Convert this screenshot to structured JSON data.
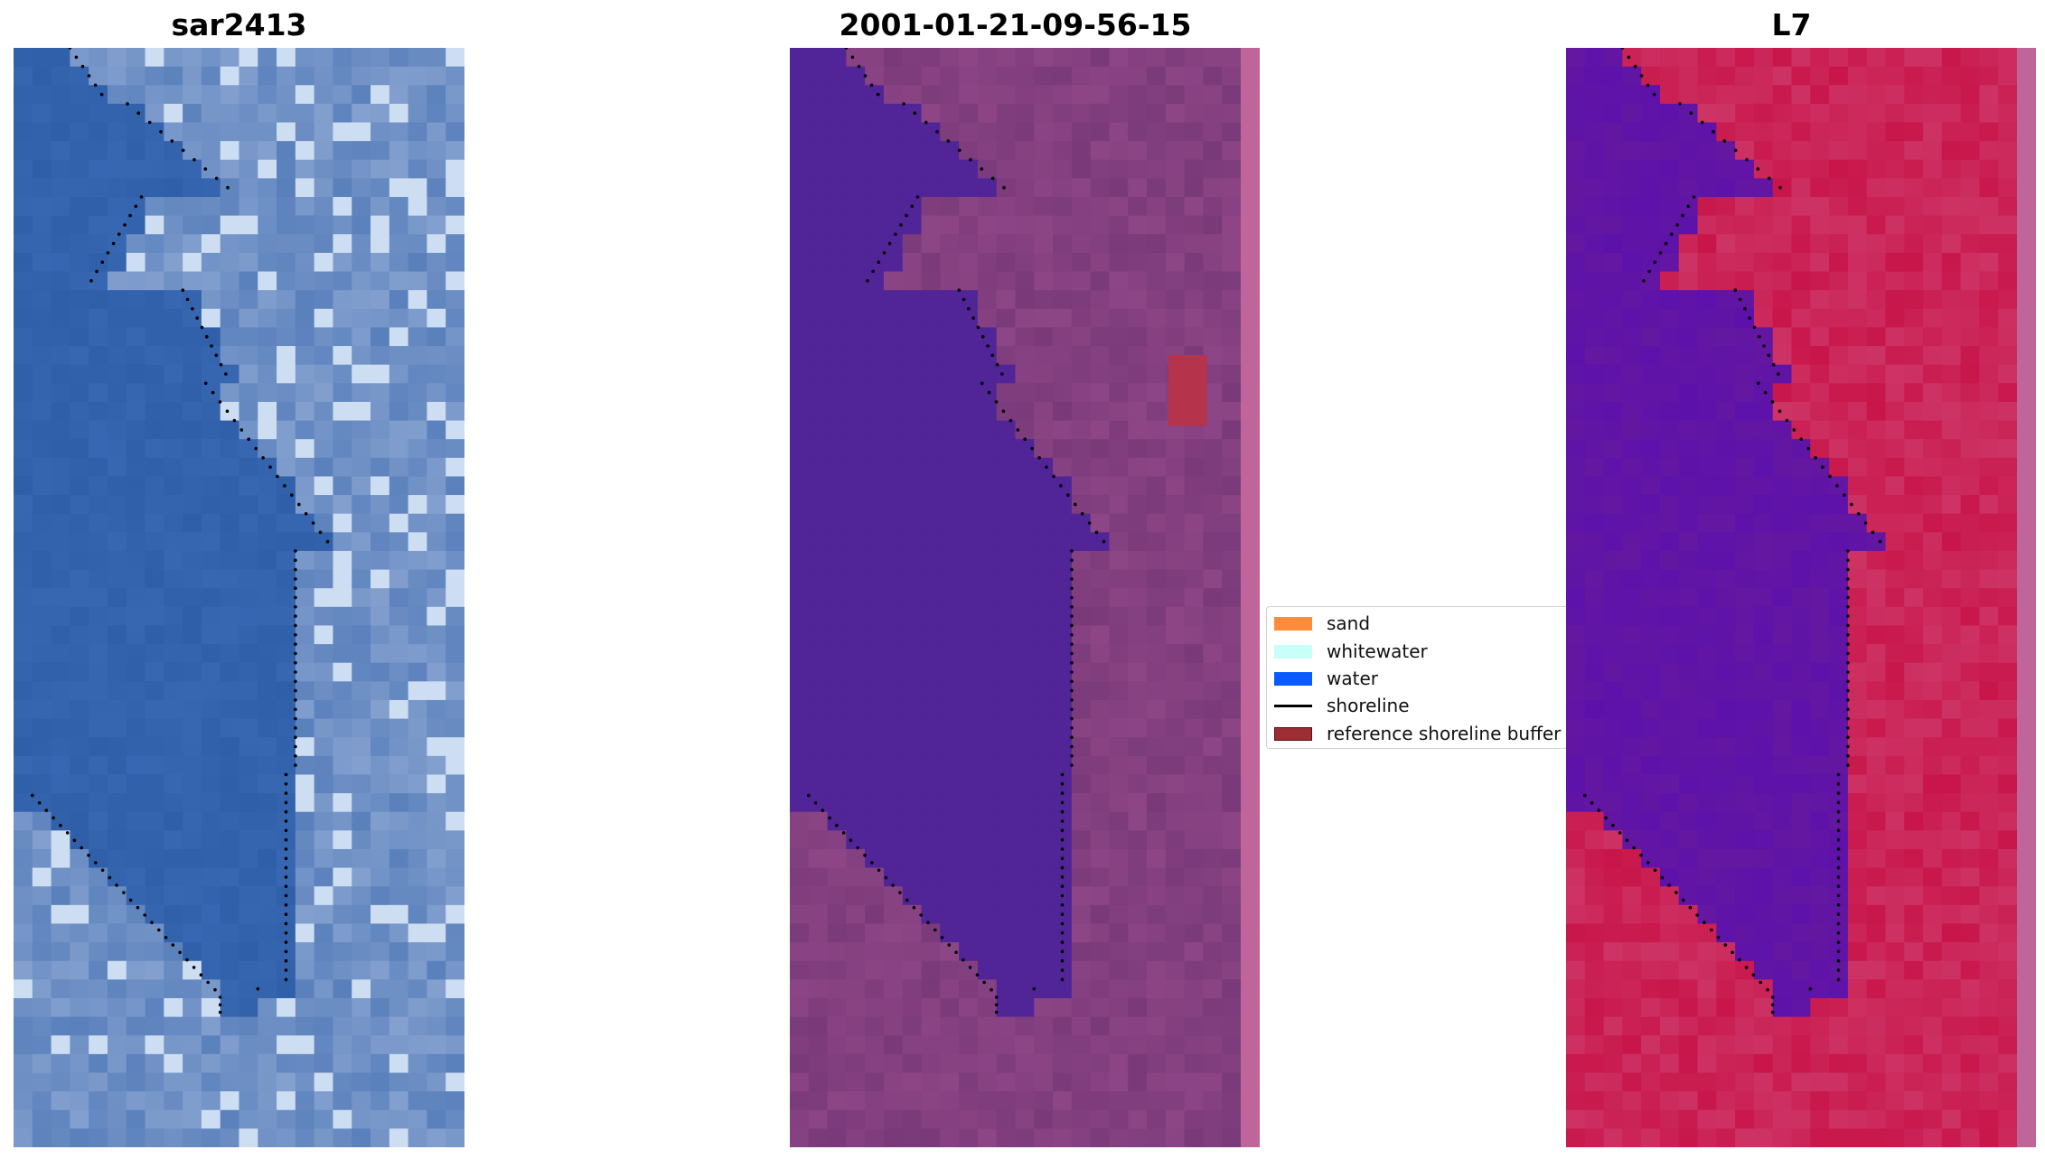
{
  "panels": {
    "rgb": {
      "title": "sar2413"
    },
    "classification": {
      "title": "2001-01-21-09-56-15"
    },
    "index": {
      "title": "L7"
    }
  },
  "legend": {
    "items": [
      {
        "label": "sand",
        "color": "#ff8c3c",
        "kind": "patch"
      },
      {
        "label": "whitewater",
        "color": "#c8fff8",
        "kind": "patch"
      },
      {
        "label": "water",
        "color": "#0a5bff",
        "kind": "patch"
      },
      {
        "label": "shoreline",
        "color": "#000000",
        "kind": "line"
      },
      {
        "label": "reference shoreline buffer",
        "color": "#9b2d33",
        "kind": "patch"
      }
    ]
  },
  "colors": {
    "rgb_water": "#2f5fa8",
    "rgb_surf": "#8fa9d4",
    "class_water": "#512597",
    "class_land": "#7a3a7a",
    "ndwi_water": "#6417a0",
    "ndwi_land": "#c8164a",
    "buffer_patch": "#b5334b",
    "shoreline_dots": "#000000"
  }
}
